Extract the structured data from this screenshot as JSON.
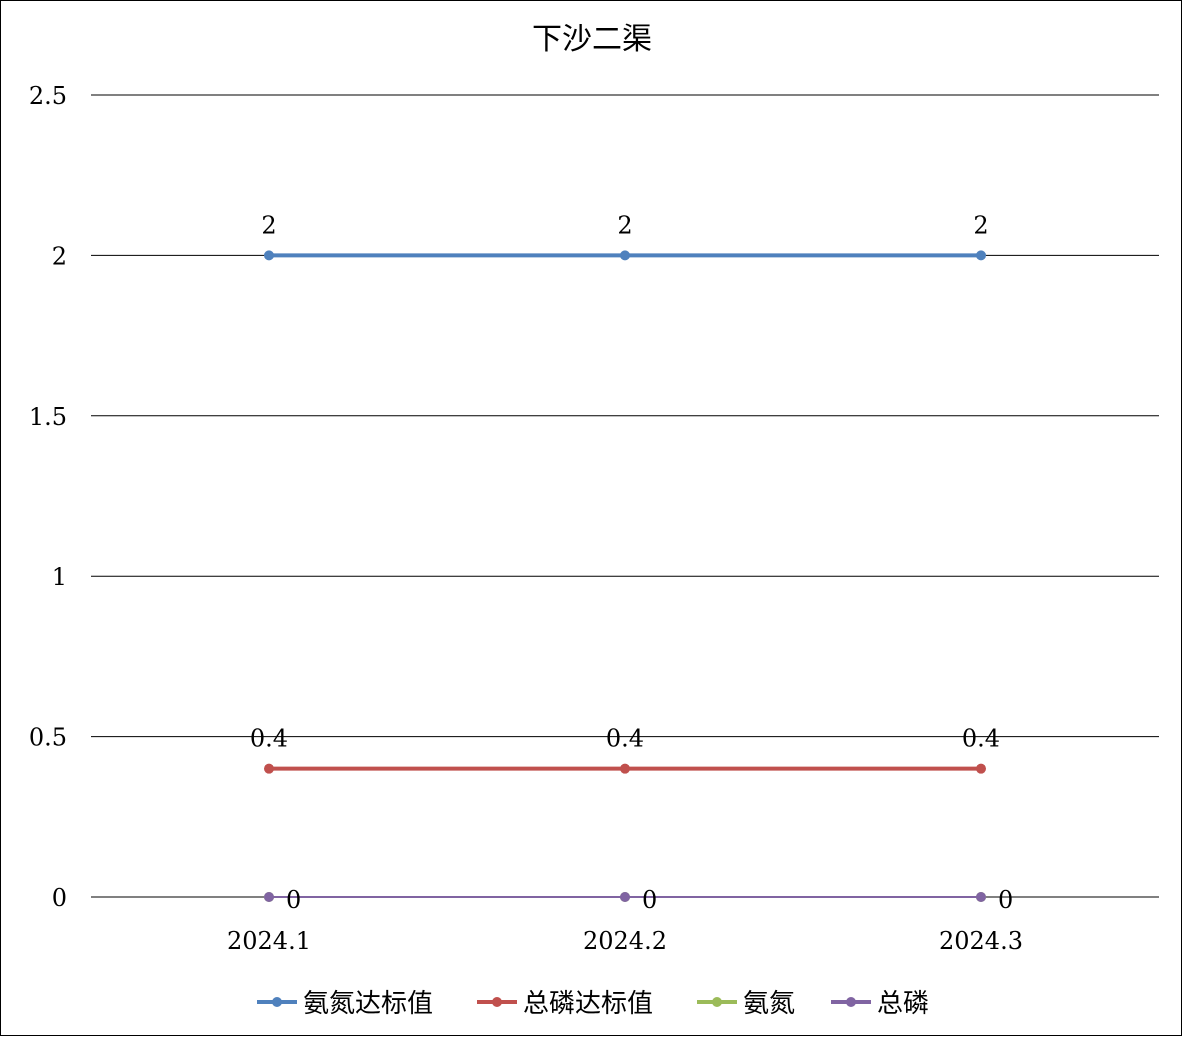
{
  "chart_data": {
    "type": "line",
    "title": "下沙二渠",
    "categories": [
      "2024.1",
      "2024.2",
      "2024.3"
    ],
    "y_ticks": [
      "0",
      "0.5",
      "1",
      "1.5",
      "2",
      "2.5"
    ],
    "ylim": [
      0,
      2.5
    ],
    "grid": true,
    "legend_position": "bottom",
    "series": [
      {
        "name": "氨氮达标值",
        "values": [
          2,
          2,
          2
        ],
        "labels": [
          "2",
          "2",
          "2"
        ],
        "color": "#4f81bd",
        "show_labels": true
      },
      {
        "name": "总磷达标值",
        "values": [
          0.4,
          0.4,
          0.4
        ],
        "labels": [
          "0.4",
          "0.4",
          "0.4"
        ],
        "color": "#c0504d",
        "show_labels": true
      },
      {
        "name": "氨氮",
        "values": [
          0,
          0,
          0
        ],
        "labels": [
          "",
          "",
          ""
        ],
        "color": "#9bbb59",
        "show_labels": false
      },
      {
        "name": "总磷",
        "values": [
          0,
          0,
          0
        ],
        "labels": [
          "0",
          "0",
          "0"
        ],
        "color": "#8064a2",
        "show_labels": true
      }
    ]
  }
}
